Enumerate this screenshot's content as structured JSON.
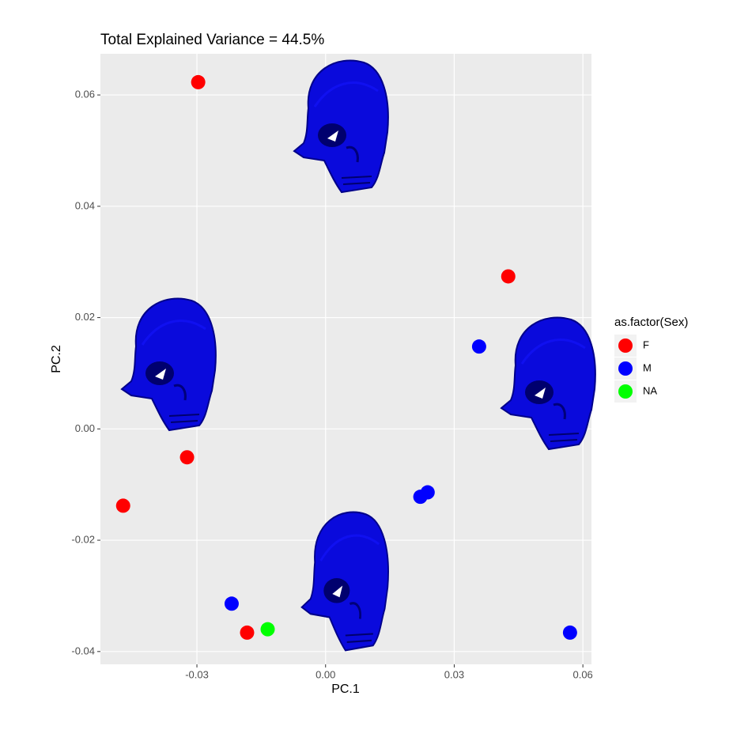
{
  "chart_data": {
    "type": "scatter",
    "title": "Total Explained Variance = 44.5%",
    "x_label": "PC.1",
    "y_label": "PC.2",
    "legend_title": "as.factor(Sex)",
    "xlim": [
      -0.0525,
      0.062
    ],
    "ylim": [
      -0.0423,
      0.0674
    ],
    "xticks": [
      -0.03,
      {
        "value": 0,
        "label": "0.00"
      },
      0.03,
      0.06
    ],
    "yticks": [
      -0.04,
      -0.02,
      {
        "value": 0,
        "label": "0.00"
      },
      0.02,
      0.04,
      0.06
    ],
    "grid": true,
    "series": [
      {
        "name": "F",
        "color": "#ff0000",
        "x": [
          -0.0297,
          0.0426,
          -0.0323,
          -0.0472,
          -0.0183
        ],
        "values": [
          0.0623,
          0.0274,
          -0.0051,
          -0.0138,
          -0.0366
        ]
      },
      {
        "name": "M",
        "color": "#0000ff",
        "x": [
          0.0358,
          0.0221,
          0.0238,
          -0.0219,
          0.057
        ],
        "values": [
          0.0148,
          -0.0122,
          -0.0114,
          -0.0314,
          -0.0366
        ]
      },
      {
        "name": "NA",
        "color": "#00ff00",
        "x": [
          -0.0135
        ],
        "values": [
          -0.036
        ]
      }
    ]
  }
}
